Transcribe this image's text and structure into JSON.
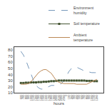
{
  "chart_data": {
    "type": "line",
    "xlabel": "hours",
    "categories": [
      "600",
      "700",
      "800",
      "900",
      "1000",
      "1100",
      "1200",
      "1300",
      "1400",
      "1500",
      "1600",
      "1700",
      "1800",
      "1900",
      "2000",
      "2100",
      "2200",
      "2300",
      "0",
      "100",
      "200",
      "300",
      "400",
      "500",
      "600",
      "700",
      "800",
      "900",
      "1000",
      "1100",
      "1200"
    ],
    "series": [
      {
        "name": "Environment\nhumidity",
        "color": "#7799bb",
        "line_style": "dashed",
        "values": [
          78,
          72,
          63,
          52,
          40,
          30,
          22,
          18,
          16,
          16,
          18,
          20,
          22,
          22,
          22,
          23,
          25,
          30,
          38,
          45,
          50,
          52,
          52,
          50,
          48,
          46,
          45,
          44,
          43,
          43,
          43
        ]
      },
      {
        "name": "Soil temperature",
        "color": "#445533",
        "line_style": "solid",
        "marker": "square",
        "values": [
          26,
          26,
          26.5,
          26.5,
          27,
          27,
          27,
          27.5,
          27.5,
          28,
          28,
          28.5,
          29,
          29,
          29.5,
          30,
          30,
          30,
          30,
          30,
          30,
          30,
          30,
          30,
          30,
          30,
          29.5,
          29.5,
          29.5,
          29,
          29
        ]
      },
      {
        "name": "Ambient\ntemperature",
        "color": "#bb8855",
        "line_style": "solid",
        "values": [
          24,
          24,
          24,
          25,
          28,
          33,
          38,
          43,
          46,
          48,
          48,
          45,
          42,
          36,
          30,
          27,
          26,
          25,
          25,
          25,
          25,
          25,
          24,
          24,
          24,
          24,
          24,
          26,
          28,
          30,
          32
        ]
      }
    ],
    "ylim": [
      10,
      85
    ],
    "yticks": [
      10,
      20,
      30,
      40,
      50,
      60,
      70,
      80
    ],
    "grid": false,
    "legend": "upper right"
  }
}
